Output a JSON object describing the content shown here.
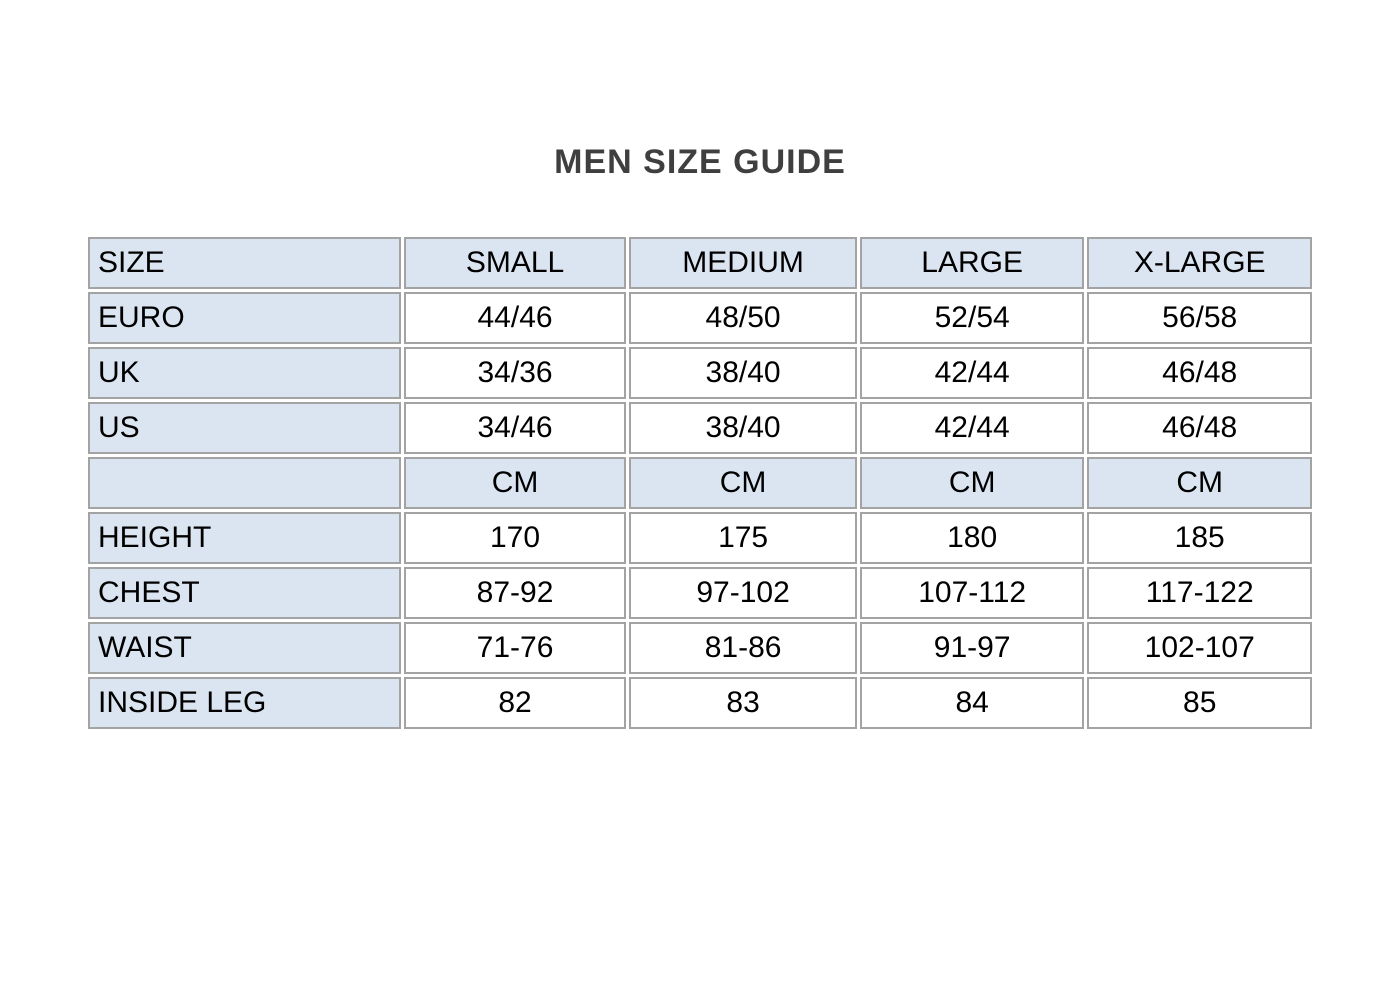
{
  "title": "MEN SIZE GUIDE",
  "table": {
    "header": [
      "SIZE",
      "SMALL",
      "MEDIUM",
      "LARGE",
      "X-LARGE"
    ],
    "rows": [
      {
        "type": "data",
        "label": "EURO",
        "values": [
          "44/46",
          "48/50",
          "52/54",
          "56/58"
        ]
      },
      {
        "type": "data",
        "label": "UK",
        "values": [
          "34/36",
          "38/40",
          "42/44",
          "46/48"
        ]
      },
      {
        "type": "data",
        "label": "US",
        "values": [
          "34/46",
          "38/40",
          "42/44",
          "46/48"
        ]
      },
      {
        "type": "subheader",
        "label": "",
        "values": [
          "CM",
          "CM",
          "CM",
          "CM"
        ]
      },
      {
        "type": "data",
        "label": "HEIGHT",
        "values": [
          "170",
          "175",
          "180",
          "185"
        ]
      },
      {
        "type": "data",
        "label": "CHEST",
        "values": [
          "87-92",
          "97-102",
          "107-112",
          "117-122"
        ]
      },
      {
        "type": "data",
        "label": "WAIST",
        "values": [
          "71-76",
          "81-86",
          "91-97",
          "102-107"
        ]
      },
      {
        "type": "data",
        "label": "INSIDE LEG",
        "values": [
          "82",
          "83",
          "84",
          "85"
        ]
      }
    ]
  },
  "colors": {
    "header_bg": "#dbe5f1",
    "cell_bg": "#ffffff",
    "border": "#a3a3a3",
    "title_text": "#3f3f3f",
    "cell_text": "#000000",
    "page_bg": "#ffffff"
  }
}
